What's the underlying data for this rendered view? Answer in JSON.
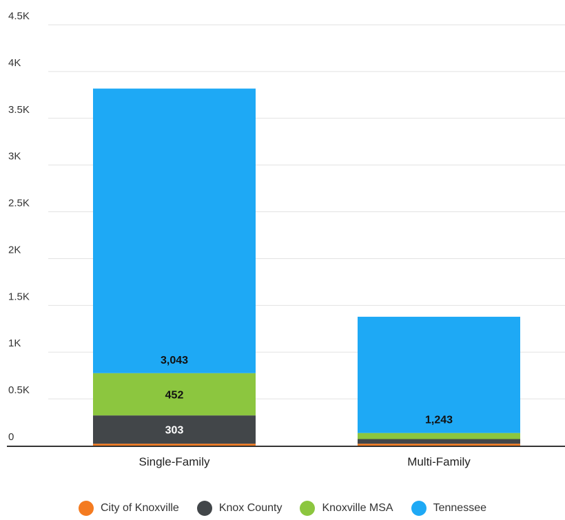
{
  "chart_data": {
    "type": "bar",
    "stacked": true,
    "categories": [
      "Single-Family",
      "Multi-Family"
    ],
    "series": [
      {
        "name": "City of Knoxville",
        "color": "#f47b20",
        "values": [
          20,
          20
        ],
        "labels": [
          "",
          ""
        ]
      },
      {
        "name": "Knox County",
        "color": "#424649",
        "values": [
          303,
          50
        ],
        "labels": [
          "303",
          ""
        ]
      },
      {
        "name": "Knoxville MSA",
        "color": "#8cc63f",
        "values": [
          452,
          65
        ],
        "labels": [
          "452",
          ""
        ]
      },
      {
        "name": "Tennessee",
        "color": "#1ea9f5",
        "values": [
          3043,
          1243
        ],
        "labels": [
          "3,043",
          "1,243"
        ]
      }
    ],
    "y_ticks": [
      "0",
      "0.5K",
      "1K",
      "1.5K",
      "2K",
      "2.5K",
      "3K",
      "3.5K",
      "4K",
      "4.5K"
    ],
    "ylim": [
      0,
      4500
    ],
    "grid": true,
    "legend_position": "bottom"
  }
}
